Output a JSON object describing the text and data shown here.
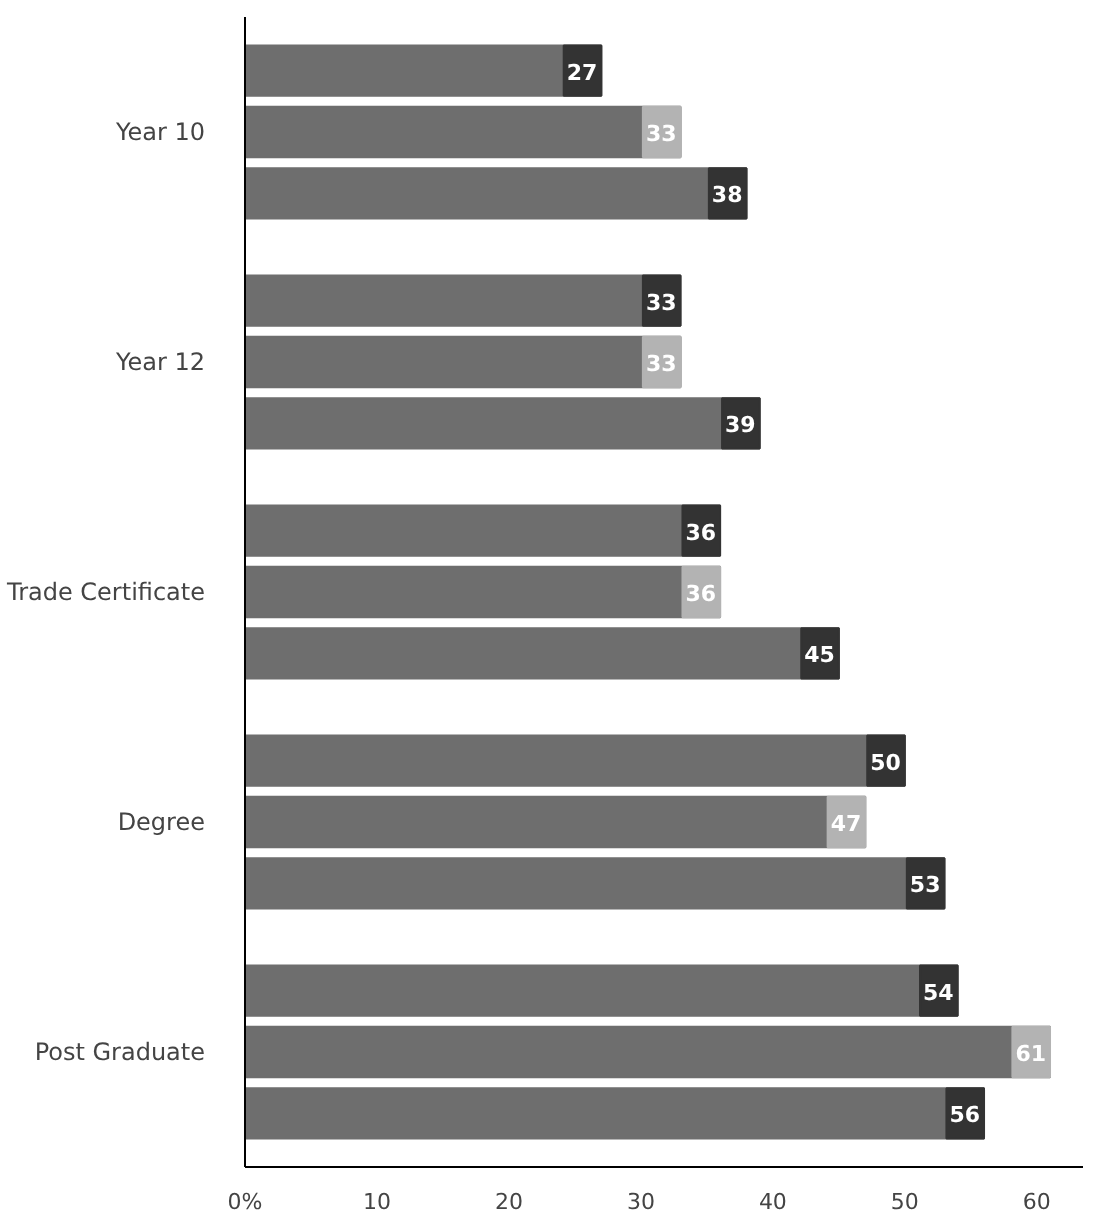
{
  "chart_data": {
    "type": "bar",
    "orientation": "horizontal",
    "categories": [
      "Year 10",
      "Year 12",
      "Trade Certificate",
      "Degree",
      "Post Graduate"
    ],
    "series": [
      {
        "color": "#6e6e6e",
        "values": [
          27,
          33,
          36,
          50,
          54
        ]
      },
      {
        "color": "#6e6e6e",
        "values": [
          33,
          33,
          36,
          47,
          61
        ]
      },
      {
        "color": "#6e6e6e",
        "values": [
          38,
          39,
          45,
          53,
          56
        ]
      }
    ],
    "xlim": [
      0,
      63.5
    ],
    "xticks": [
      {
        "value": 0,
        "label": "0%"
      },
      10,
      20,
      30,
      40,
      50,
      60
    ],
    "data_labels": true
  }
}
